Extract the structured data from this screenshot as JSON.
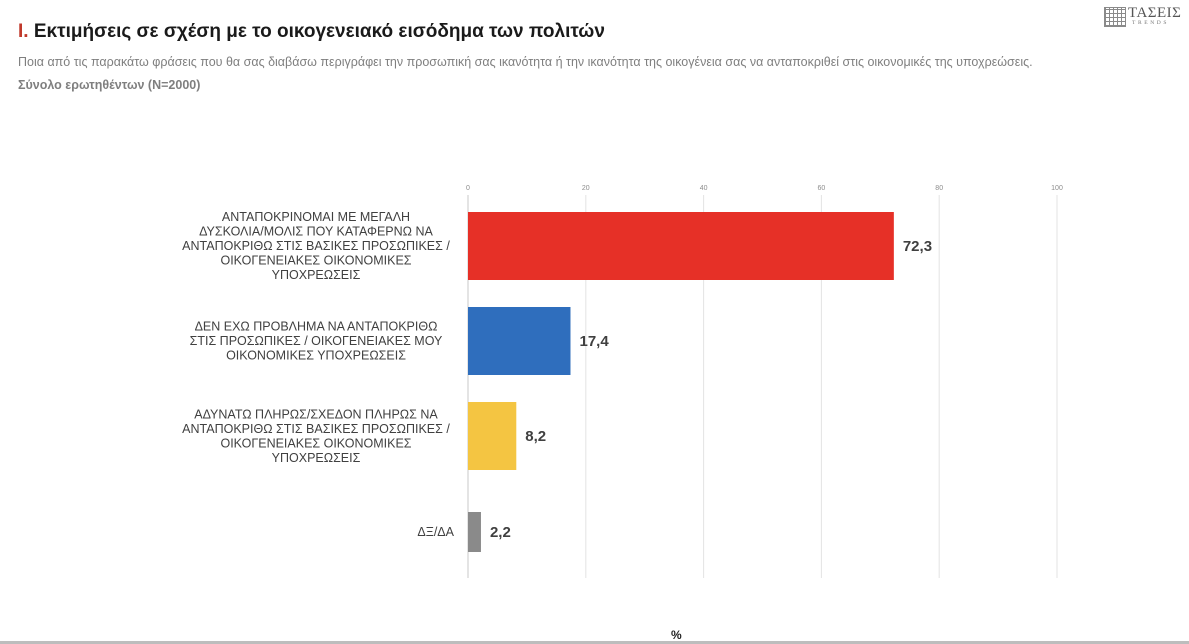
{
  "header": {
    "title_num": "I.",
    "title_text": "Εκτιμήσεις σε σχέση με το οικογενειακό εισόδημα των πολιτών",
    "subtitle": "Ποια από τις παρακάτω φράσεις που θα σας διαβάσω περιγράφει την προσωπική σας ικανότητα ή την ικανότητα της οικογένεια σας να ανταποκριθεί στις οικονομικές της  υποχρεώσεις.",
    "base": "Σύνολο ερωτηθέντων (N=2000)"
  },
  "logo": {
    "word": "ΤΑΣΕΙΣ",
    "sub": "TRENDS"
  },
  "colors": {
    "bars": [
      "#e63027",
      "#2f6ebd",
      "#f4c542",
      "#8a8a8a"
    ]
  },
  "chart_data": {
    "type": "bar",
    "orientation": "horizontal",
    "categories": [
      [
        "ΑΝΤΑΠΟΚΡΙΝΟΜΑΙ ΜΕ ΜΕΓΑΛΗ",
        "ΔΥΣΚΟΛΙΑ/ΜΟΛΙΣ ΠΟΥ ΚΑΤΑΦΕΡΝΩ ΝΑ",
        "ΑΝΤΑΠΟΚΡΙΘΩ ΣΤΙΣ ΒΑΣΙΚΕΣ ΠΡΟΣΩΠΙΚΕΣ /",
        "ΟΙΚΟΓΕΝΕΙΑΚΕΣ ΟΙΚΟΝΟΜΙΚΕΣ",
        "ΥΠΟΧΡΕΩΣΕΙΣ"
      ],
      [
        "ΔΕΝ ΕΧΩ ΠΡΟΒΛΗΜΑ ΝΑ ΑΝΤΑΠΟΚΡΙΘΩ",
        "ΣΤΙΣ ΠΡΟΣΩΠΙΚΕΣ / ΟΙΚΟΓΕΝΕΙΑΚΕΣ ΜΟΥ",
        "ΟΙΚΟΝΟΜΙΚΕΣ ΥΠΟΧΡΕΩΣΕΙΣ"
      ],
      [
        "ΑΔΥΝΑΤΩ ΠΛΗΡΩΣ/ΣΧΕΔΟΝ ΠΛΗΡΩΣ ΝΑ",
        "ΑΝΤΑΠΟΚΡΙΘΩ ΣΤΙΣ ΒΑΣΙΚΕΣ ΠΡΟΣΩΠΙΚΕΣ /",
        "ΟΙΚΟΓΕΝΕΙΑΚΕΣ ΟΙΚΟΝΟΜΙΚΕΣ",
        "ΥΠΟΧΡΕΩΣΕΙΣ"
      ],
      [
        "ΔΞ/ΔΑ"
      ]
    ],
    "values": [
      72.3,
      17.4,
      8.2,
      2.2
    ],
    "value_labels": [
      "72,3",
      "17,4",
      "8,2",
      "2,2"
    ],
    "xlim": [
      0,
      100
    ],
    "xticks": [
      0,
      20,
      40,
      60,
      80,
      100
    ],
    "xlabel": "%",
    "grid": true
  }
}
